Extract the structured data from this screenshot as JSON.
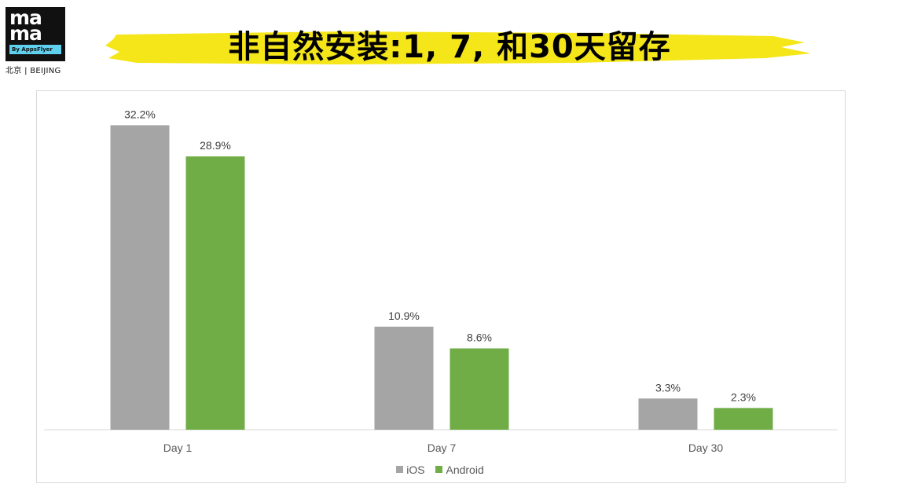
{
  "logo": {
    "line1": "ma",
    "line2": "ma",
    "byline": "By AppsFlyer",
    "city": "北京 | BEIJING"
  },
  "title": "非自然安装:1, 7, 和30天留存",
  "colors": {
    "banner": "#f5e61a",
    "ios": "#a5a5a5",
    "android": "#70ad47"
  },
  "chart_data": {
    "type": "bar",
    "categories": [
      "Day 1",
      "Day 7",
      "Day 30"
    ],
    "series": [
      {
        "name": "iOS",
        "values": [
          32.2,
          10.9,
          3.3
        ],
        "labels": [
          "32.2%",
          "10.9%",
          "3.3%"
        ],
        "color": "#a5a5a5"
      },
      {
        "name": "Android",
        "values": [
          28.9,
          8.6,
          2.3
        ],
        "labels": [
          "28.9%",
          "8.6%",
          "2.3%"
        ],
        "color": "#70ad47"
      }
    ],
    "ylim": [
      0,
      35
    ],
    "grid": false,
    "legend": "bottom"
  }
}
